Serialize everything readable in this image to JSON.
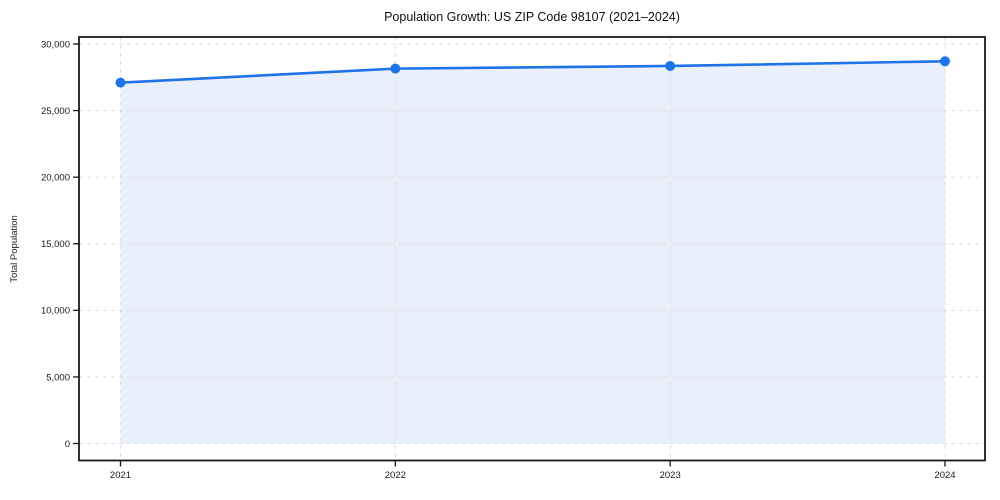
{
  "chart_data": {
    "type": "area",
    "title": "Population Growth: US ZIP Code 98107 (2021–2024)",
    "xlabel": "",
    "ylabel": "Total Population",
    "x": [
      2021,
      2022,
      2023,
      2024
    ],
    "x_tick_labels": [
      "2021",
      "2022",
      "2023",
      "2024"
    ],
    "series": [
      {
        "name": "Total Population",
        "values": [
          27100,
          28150,
          28350,
          28700
        ]
      }
    ],
    "ylim": [
      0,
      30000
    ],
    "y_ticks": [
      0,
      5000,
      10000,
      15000,
      20000,
      25000,
      30000
    ],
    "y_tick_labels": [
      "0",
      "5,000",
      "10,000",
      "15,000",
      "20,000",
      "25,000",
      "30,000"
    ],
    "grid": true,
    "grid_style": "dashed",
    "legend": false,
    "marker": "circle",
    "colors": {
      "line": "#1f72e8",
      "fill": "#e9f0fc",
      "grid": "#e0e0e0",
      "axis": "#1a1a1a",
      "text": "#1a1a1a",
      "background": "#ffffff"
    }
  }
}
